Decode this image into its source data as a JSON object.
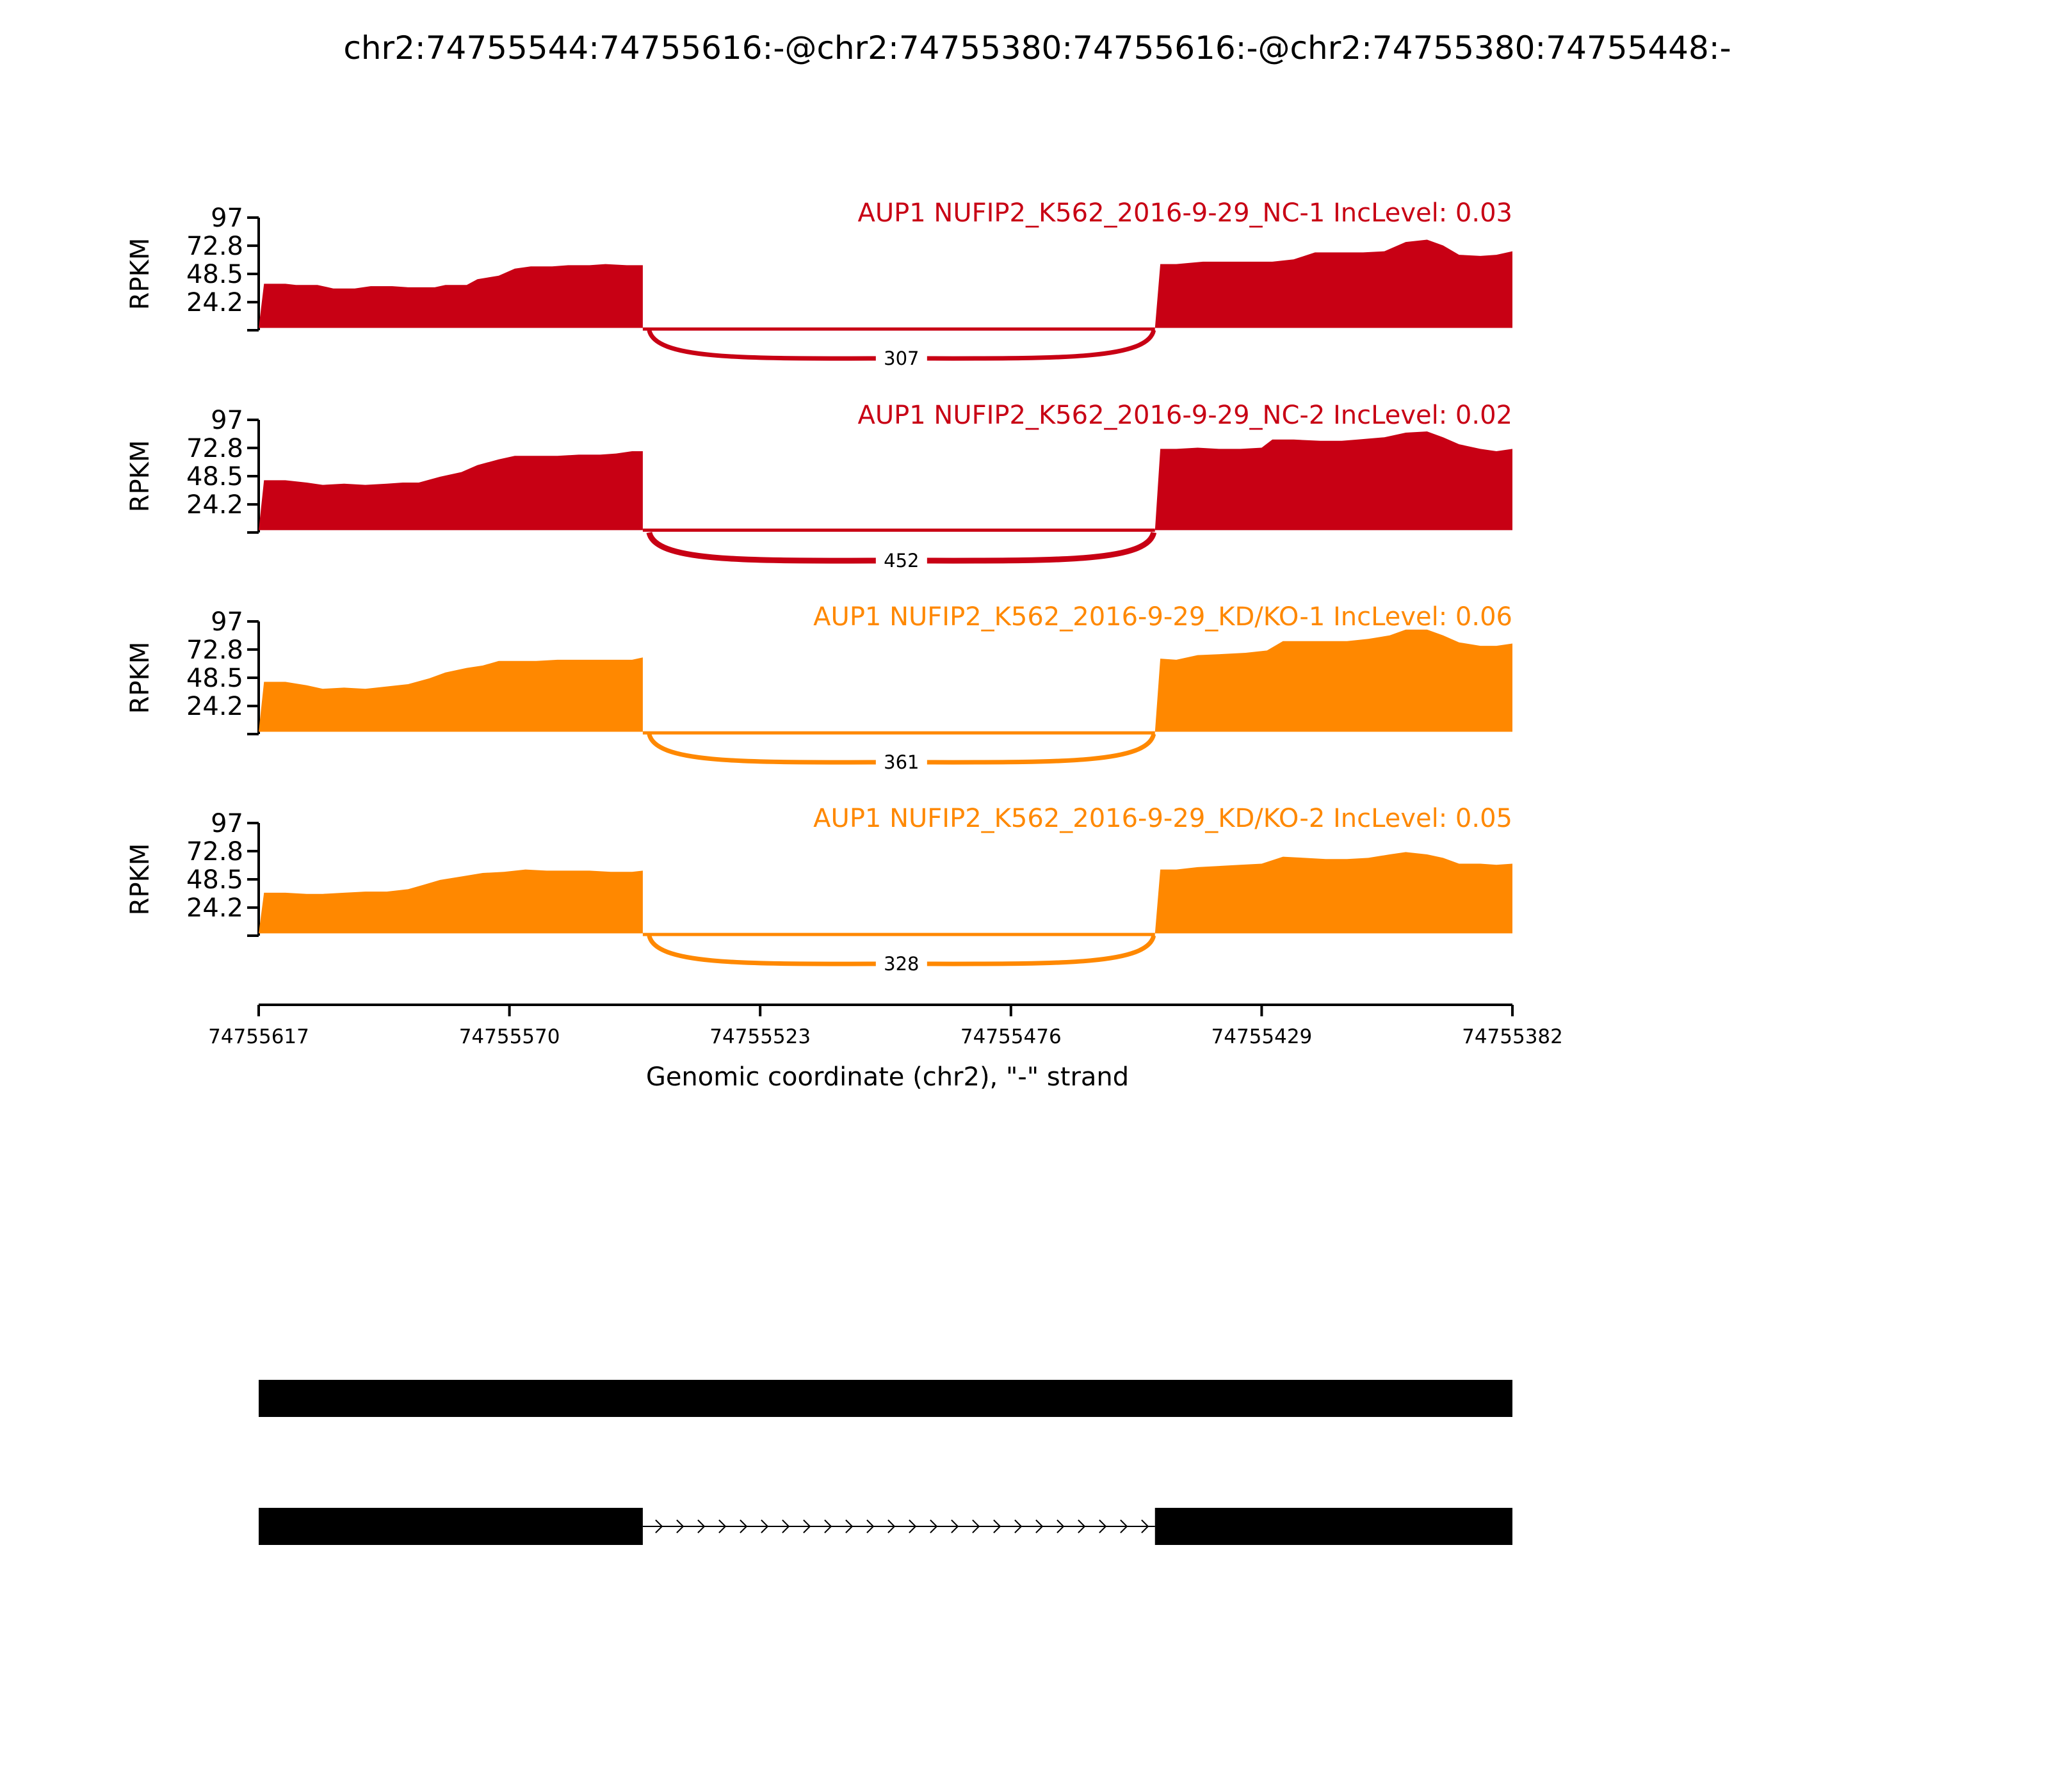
{
  "chart_data": {
    "type": "area",
    "title": "chr2:74755544:74755616:-@chr2:74755380:74755616:-@chr2:74755380:74755448:-",
    "xlabel": "Genomic coordinate (chr2), \"-\" strand",
    "ylabel": "RPKM",
    "xlim": [
      74755617,
      74755382
    ],
    "ylim": [
      0,
      97
    ],
    "xticks": [
      "74755617",
      "74755570",
      "74755523",
      "74755476",
      "74755429",
      "74755382"
    ],
    "yticks": [
      "97",
      "72.8",
      "48.5",
      "24.2"
    ],
    "exon_left": [
      74755617,
      74755545
    ],
    "exon_right": [
      74755449,
      74755382
    ],
    "series": [
      {
        "label": "AUP1 NUFIP2_K562_2016-9-29_NC-1 IncLevel: 0.03",
        "color": "#c80014",
        "junction_count": "307",
        "intron_level": 1,
        "left": [
          [
            74755617,
            2
          ],
          [
            74755616,
            40
          ],
          [
            74755612,
            40
          ],
          [
            74755610,
            39
          ],
          [
            74755606,
            39
          ],
          [
            74755603,
            36
          ],
          [
            74755599,
            36
          ],
          [
            74755596,
            38
          ],
          [
            74755592,
            38
          ],
          [
            74755589,
            37
          ],
          [
            74755584,
            37
          ],
          [
            74755582,
            39
          ],
          [
            74755578,
            39
          ],
          [
            74755576,
            44
          ],
          [
            74755572,
            47
          ],
          [
            74755569,
            53
          ],
          [
            74755566,
            55
          ],
          [
            74755562,
            55
          ],
          [
            74755559,
            56
          ],
          [
            74755555,
            56
          ],
          [
            74755552,
            57
          ],
          [
            74755548,
            56
          ],
          [
            74755545,
            56
          ],
          [
            74755545,
            2
          ]
        ],
        "right": [
          [
            74755449,
            2
          ],
          [
            74755448,
            57
          ],
          [
            74755445,
            57
          ],
          [
            74755440,
            59
          ],
          [
            74755436,
            59
          ],
          [
            74755431,
            59
          ],
          [
            74755427,
            59
          ],
          [
            74755423,
            61
          ],
          [
            74755419,
            67
          ],
          [
            74755414,
            67
          ],
          [
            74755410,
            67
          ],
          [
            74755406,
            68
          ],
          [
            74755402,
            76
          ],
          [
            74755398,
            78
          ],
          [
            74755395,
            73
          ],
          [
            74755392,
            65
          ],
          [
            74755388,
            64
          ],
          [
            74755385,
            65
          ],
          [
            74755382,
            68
          ],
          [
            74755382,
            2
          ]
        ]
      },
      {
        "label": "AUP1 NUFIP2_K562_2016-9-29_NC-2 IncLevel: 0.02",
        "color": "#c80014",
        "junction_count": "452",
        "intron_level": 2,
        "left": [
          [
            74755617,
            2
          ],
          [
            74755616,
            45
          ],
          [
            74755612,
            45
          ],
          [
            74755608,
            43
          ],
          [
            74755605,
            41
          ],
          [
            74755601,
            42
          ],
          [
            74755597,
            41
          ],
          [
            74755593,
            42
          ],
          [
            74755590,
            43
          ],
          [
            74755587,
            43
          ],
          [
            74755583,
            48
          ],
          [
            74755579,
            52
          ],
          [
            74755576,
            58
          ],
          [
            74755572,
            63
          ],
          [
            74755569,
            66
          ],
          [
            74755565,
            66
          ],
          [
            74755561,
            66
          ],
          [
            74755557,
            67
          ],
          [
            74755553,
            67
          ],
          [
            74755550,
            68
          ],
          [
            74755547,
            70
          ],
          [
            74755545,
            70
          ],
          [
            74755545,
            2
          ]
        ],
        "right": [
          [
            74755449,
            2
          ],
          [
            74755448,
            72
          ],
          [
            74755445,
            72
          ],
          [
            74755441,
            73
          ],
          [
            74755437,
            72
          ],
          [
            74755433,
            72
          ],
          [
            74755429,
            73
          ],
          [
            74755427,
            80
          ],
          [
            74755423,
            80
          ],
          [
            74755418,
            79
          ],
          [
            74755414,
            79
          ],
          [
            74755411,
            80
          ],
          [
            74755406,
            82
          ],
          [
            74755402,
            86
          ],
          [
            74755398,
            87
          ],
          [
            74755395,
            82
          ],
          [
            74755392,
            76
          ],
          [
            74755388,
            72
          ],
          [
            74755385,
            70
          ],
          [
            74755382,
            72
          ],
          [
            74755382,
            2
          ]
        ]
      },
      {
        "label": "AUP1 NUFIP2_K562_2016-9-29_KD/KO-1 IncLevel: 0.06",
        "color": "#ff8800",
        "junction_count": "361",
        "intron_level": 1,
        "left": [
          [
            74755617,
            2
          ],
          [
            74755616,
            45
          ],
          [
            74755612,
            45
          ],
          [
            74755608,
            42
          ],
          [
            74755605,
            39
          ],
          [
            74755601,
            40
          ],
          [
            74755597,
            39
          ],
          [
            74755593,
            41
          ],
          [
            74755589,
            43
          ],
          [
            74755585,
            48
          ],
          [
            74755582,
            53
          ],
          [
            74755578,
            57
          ],
          [
            74755575,
            59
          ],
          [
            74755572,
            63
          ],
          [
            74755569,
            63
          ],
          [
            74755565,
            63
          ],
          [
            74755561,
            64
          ],
          [
            74755558,
            64
          ],
          [
            74755554,
            64
          ],
          [
            74755550,
            64
          ],
          [
            74755547,
            64
          ],
          [
            74755545,
            66
          ],
          [
            74755545,
            2
          ]
        ],
        "right": [
          [
            74755449,
            2
          ],
          [
            74755448,
            65
          ],
          [
            74755445,
            64
          ],
          [
            74755441,
            68
          ],
          [
            74755436,
            69
          ],
          [
            74755432,
            70
          ],
          [
            74755428,
            72
          ],
          [
            74755425,
            80
          ],
          [
            74755421,
            80
          ],
          [
            74755417,
            80
          ],
          [
            74755413,
            80
          ],
          [
            74755409,
            82
          ],
          [
            74755405,
            85
          ],
          [
            74755402,
            90
          ],
          [
            74755398,
            90
          ],
          [
            74755395,
            85
          ],
          [
            74755392,
            79
          ],
          [
            74755388,
            76
          ],
          [
            74755385,
            76
          ],
          [
            74755382,
            78
          ],
          [
            74755382,
            2
          ]
        ]
      },
      {
        "label": "AUP1 NUFIP2_K562_2016-9-29_KD/KO-2 IncLevel: 0.05",
        "color": "#ff8800",
        "junction_count": "328",
        "intron_level": 1,
        "left": [
          [
            74755617,
            2
          ],
          [
            74755616,
            37
          ],
          [
            74755612,
            37
          ],
          [
            74755608,
            36
          ],
          [
            74755605,
            36
          ],
          [
            74755601,
            37
          ],
          [
            74755597,
            38
          ],
          [
            74755593,
            38
          ],
          [
            74755589,
            40
          ],
          [
            74755586,
            44
          ],
          [
            74755583,
            48
          ],
          [
            74755579,
            51
          ],
          [
            74755575,
            54
          ],
          [
            74755571,
            55
          ],
          [
            74755567,
            57
          ],
          [
            74755563,
            56
          ],
          [
            74755559,
            56
          ],
          [
            74755555,
            56
          ],
          [
            74755551,
            55
          ],
          [
            74755547,
            55
          ],
          [
            74755545,
            56
          ],
          [
            74755545,
            2
          ]
        ],
        "right": [
          [
            74755449,
            2
          ],
          [
            74755448,
            57
          ],
          [
            74755445,
            57
          ],
          [
            74755441,
            59
          ],
          [
            74755437,
            60
          ],
          [
            74755433,
            61
          ],
          [
            74755429,
            62
          ],
          [
            74755425,
            68
          ],
          [
            74755421,
            67
          ],
          [
            74755417,
            66
          ],
          [
            74755413,
            66
          ],
          [
            74755409,
            67
          ],
          [
            74755405,
            70
          ],
          [
            74755402,
            72
          ],
          [
            74755398,
            70
          ],
          [
            74755395,
            67
          ],
          [
            74755392,
            62
          ],
          [
            74755388,
            62
          ],
          [
            74755385,
            61
          ],
          [
            74755382,
            62
          ],
          [
            74755382,
            2
          ]
        ]
      }
    ],
    "isoforms": [
      {
        "exons": [
          [
            74755617,
            74755382
          ]
        ]
      },
      {
        "exons": [
          [
            74755617,
            74755545
          ],
          [
            74755449,
            74755382
          ]
        ],
        "intron_strand": "-"
      }
    ]
  }
}
